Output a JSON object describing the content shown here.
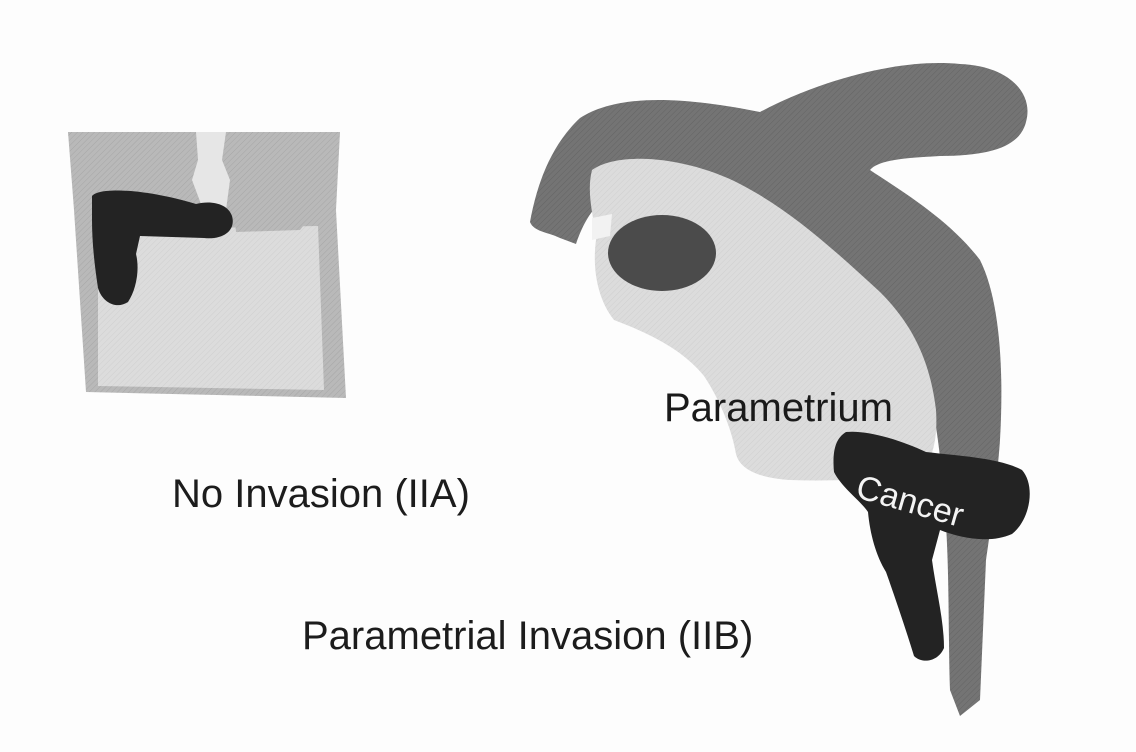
{
  "labels": {
    "no_invasion": "No Invasion (IIA)",
    "parametrial_invasion": "Parametrial Invasion (IIB)",
    "parametrium": "Parametrium",
    "cancer": "Cancer"
  },
  "colors": {
    "background": "#fdfdfd",
    "light_tissue": "#d9d9d9",
    "medium_tissue": "#b3b3b3",
    "dark_tissue": "#6f6f6f",
    "cancer": "#232323",
    "text": "#1c1c1c"
  }
}
